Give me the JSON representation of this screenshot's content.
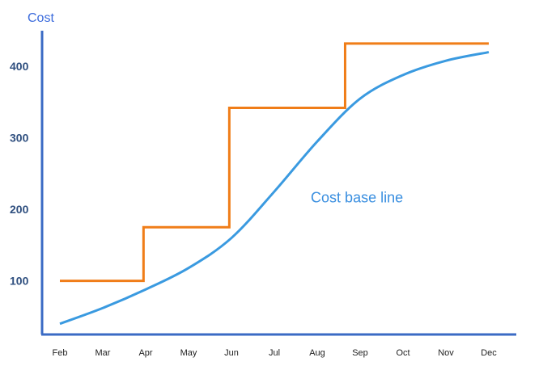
{
  "chart_data": {
    "type": "line",
    "ylabel": "Cost",
    "xlabel": "",
    "categories": [
      "Feb",
      "Mar",
      "Apr",
      "May",
      "Jun",
      "Jul",
      "Aug",
      "Sep",
      "Oct",
      "Nov",
      "Dec"
    ],
    "yticks": [
      100,
      200,
      300,
      400
    ],
    "ylim": [
      25,
      450
    ],
    "grid": false,
    "axis_color": "#3b6bc4",
    "series": [
      {
        "name": "",
        "style": "step",
        "color": "#f07d18",
        "points": [
          {
            "x": 0.0,
            "y": 100
          },
          {
            "x": 1.95,
            "y": 100
          },
          {
            "x": 1.95,
            "y": 175
          },
          {
            "x": 3.95,
            "y": 175
          },
          {
            "x": 3.95,
            "y": 342
          },
          {
            "x": 6.65,
            "y": 342
          },
          {
            "x": 6.65,
            "y": 432
          },
          {
            "x": 10.0,
            "y": 432
          }
        ]
      },
      {
        "name": "Cost base line",
        "style": "smooth",
        "color": "#3a9ae0",
        "points": [
          {
            "x": 0,
            "y": 40
          },
          {
            "x": 1,
            "y": 62
          },
          {
            "x": 2,
            "y": 88
          },
          {
            "x": 3,
            "y": 118
          },
          {
            "x": 4,
            "y": 160
          },
          {
            "x": 5,
            "y": 225
          },
          {
            "x": 6,
            "y": 295
          },
          {
            "x": 7,
            "y": 355
          },
          {
            "x": 8,
            "y": 388
          },
          {
            "x": 9,
            "y": 408
          },
          {
            "x": 10,
            "y": 420
          }
        ]
      }
    ],
    "annotations": [
      {
        "text": "Cost base line",
        "x": 5.85,
        "y": 210,
        "color": "#3a8fe0"
      }
    ]
  }
}
